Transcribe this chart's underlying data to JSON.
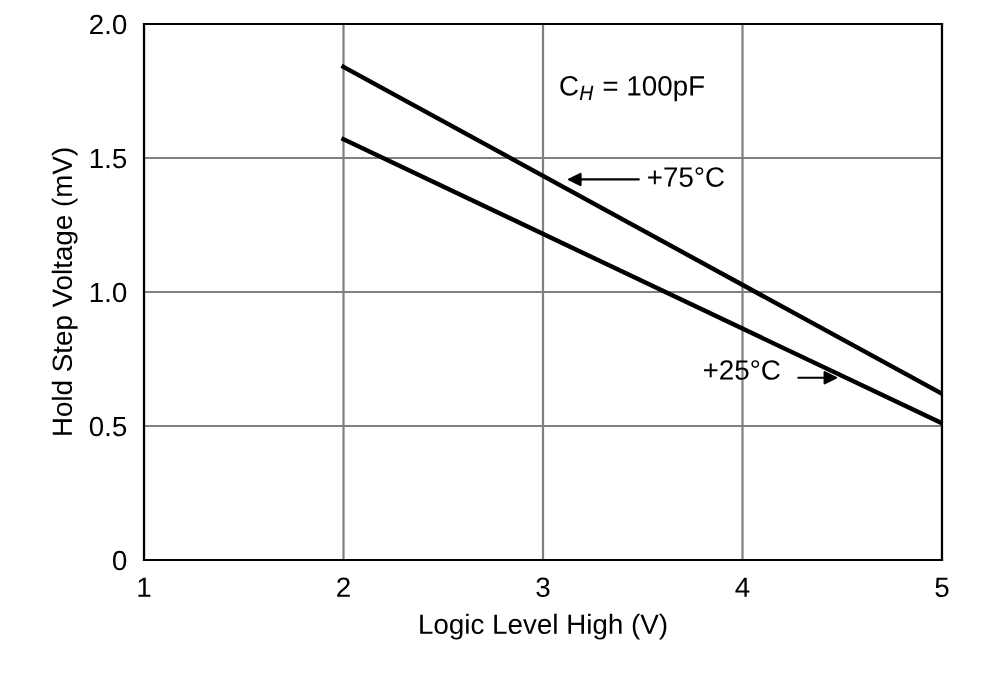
{
  "chart_data": {
    "type": "line",
    "xlabel": "Logic Level High (V)",
    "ylabel": "Hold Step Voltage (mV)",
    "x": [
      2,
      5
    ],
    "series": [
      {
        "color": "#000000",
        "values": [
          1.84,
          0.62
        ]
      },
      {
        "color": "#000000",
        "values": [
          1.57,
          0.51
        ]
      }
    ],
    "xlim": [
      1,
      5
    ],
    "xticks": [
      1,
      2,
      3,
      4,
      5
    ],
    "ylim": [
      0,
      2.0
    ],
    "yticks": [
      0,
      {
        "value": 0.5,
        "label": "0.5"
      },
      {
        "value": 1.0,
        "label": "1.0"
      },
      {
        "value": 1.5,
        "label": "1.5"
      },
      {
        "value": 2.0,
        "label": "2.0"
      }
    ],
    "grid": true,
    "marker": "none",
    "line_style": "solid",
    "legend": false,
    "annotations": [
      "C$_{H}$ = 100pF",
      "+75°C",
      "+25°C"
    ]
  }
}
